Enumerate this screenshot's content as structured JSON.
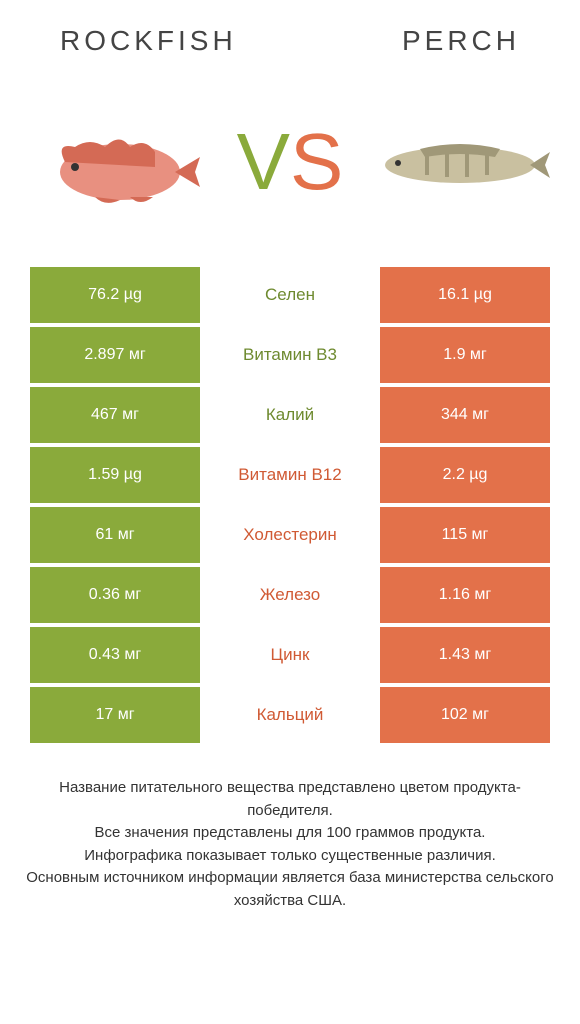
{
  "colors": {
    "green": "#8aaa3b",
    "orange": "#e3714a",
    "mid_green_text": "#6e8a2f",
    "mid_orange_text": "#d05a34",
    "title_text": "#444444",
    "footer_text": "#333333",
    "white": "#ffffff",
    "rockfish_body": "#e89080",
    "rockfish_fin": "#d46a55",
    "perch_body": "#c9c0a0",
    "perch_stripe": "#a09878"
  },
  "header": {
    "left_title": "Rockfish",
    "right_title": "Perch"
  },
  "vs": {
    "v": "V",
    "s": "S"
  },
  "rows": [
    {
      "left": "76.2 µg",
      "label": "Селен",
      "right": "16.1 µg",
      "winner": "left"
    },
    {
      "left": "2.897 мг",
      "label": "Витамин B3",
      "right": "1.9 мг",
      "winner": "left"
    },
    {
      "left": "467 мг",
      "label": "Калий",
      "right": "344 мг",
      "winner": "left"
    },
    {
      "left": "1.59 µg",
      "label": "Витамин B12",
      "right": "2.2 µg",
      "winner": "right"
    },
    {
      "left": "61 мг",
      "label": "Холестерин",
      "right": "115 мг",
      "winner": "right"
    },
    {
      "left": "0.36 мг",
      "label": "Железо",
      "right": "1.16 мг",
      "winner": "right"
    },
    {
      "left": "0.43 мг",
      "label": "Цинк",
      "right": "1.43 мг",
      "winner": "right"
    },
    {
      "left": "17 мг",
      "label": "Кальций",
      "right": "102 мг",
      "winner": "right"
    }
  ],
  "footer": {
    "line1": "Название питательного вещества представлено цветом продукта-победителя.",
    "line2": "Все значения представлены для 100 граммов продукта.",
    "line3": "Инфографика показывает только существенные различия.",
    "line4": "Основным источником информации является база министерства сельского хозяйства США."
  }
}
